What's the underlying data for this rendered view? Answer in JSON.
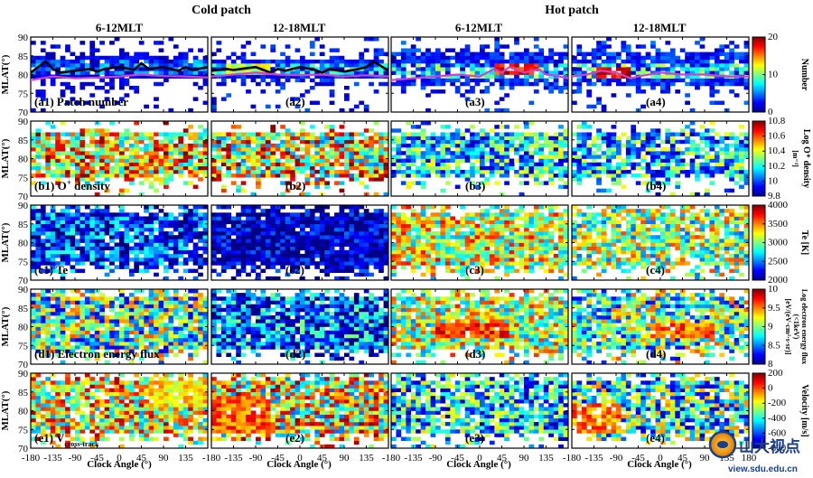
{
  "headers": {
    "cold": "Cold patch",
    "hot": "Hot patch"
  },
  "column_titles": [
    "6-12MLT",
    "12-18MLT",
    "6-12MLT",
    "12-18MLT"
  ],
  "y_axis_label": "MLAT(°)",
  "x_axis_label": "Clock Angle (°)",
  "y_ticks": [
    "70",
    "75",
    "80",
    "85",
    "90"
  ],
  "x_ticks": [
    "-180",
    "-135",
    "-90",
    "-45",
    "0",
    "45",
    "90",
    "135"
  ],
  "x_ticks_last": [
    "-180",
    "-135",
    "-90",
    "-45",
    "0",
    "45",
    "90",
    "135",
    "180"
  ],
  "panel_labels": [
    [
      "(a1) Patch number",
      "(a2)",
      "(a3)",
      "(a4)"
    ],
    [
      "(b1) O",
      "(b2)",
      "(b3)",
      "(b4)"
    ],
    [
      "(c1) Te",
      "(c2)",
      "(c3)",
      "(c4)"
    ],
    [
      "(d1) Electron energy flux",
      "(d2)",
      "(d3)",
      "(d4)"
    ],
    [
      "(e1) V",
      "(e2)",
      "(e3)",
      "(e4)"
    ]
  ],
  "label_suffix": {
    "b1_sup": "+",
    "b1_rest": " density",
    "e1_sub": "cross-track"
  },
  "colorbars": [
    {
      "ticks": [
        "0",
        "10",
        "20"
      ],
      "label": "Number",
      "range": [
        0,
        20
      ]
    },
    {
      "ticks": [
        "9.8",
        "10",
        "10.2",
        "10.4",
        "10.6",
        "10.8"
      ],
      "label": "Log O⁺ density",
      "sub": "[m⁻³]",
      "range": [
        9.8,
        10.8
      ]
    },
    {
      "ticks": [
        "2000",
        "2500",
        "3000",
        "3500",
        "4000"
      ],
      "label": "Te [K]",
      "range": [
        2000,
        4000
      ]
    },
    {
      "ticks": [
        "8",
        "8.5",
        "9",
        "9.5",
        "10"
      ],
      "label": "Log electron energy flux",
      "sub": "(<1keV)",
      "sub2": "[eV/(eV·cm²·s·sr)]",
      "range": [
        8,
        10
      ]
    },
    {
      "ticks": [
        "-800",
        "-600",
        "-400",
        "-200",
        "0",
        "200"
      ],
      "label": "Velocity [m/s]",
      "range": [
        -800,
        200
      ]
    }
  ],
  "watermark": {
    "name": "山大视点",
    "url": "view.sdu.edu.cn"
  },
  "chart_data": {
    "type": "heatmap",
    "x_range": [
      -180,
      180
    ],
    "y_range": [
      70,
      90
    ],
    "rows": [
      "Patch number",
      "O+ density",
      "Te",
      "Electron energy flux",
      "V cross-track"
    ],
    "columns": [
      "Cold patch 6-12MLT",
      "Cold patch 12-18MLT",
      "Hot patch 6-12MLT",
      "Hot patch 12-18MLT"
    ],
    "row_typical_values": [
      [
        3,
        4,
        5,
        6
      ],
      [
        10.4,
        10.4,
        10.1,
        10.1
      ],
      [
        2300,
        2100,
        3200,
        3000
      ],
      [
        9.0,
        8.6,
        9.4,
        9.3
      ],
      [
        -400,
        -400,
        -200,
        -200
      ]
    ],
    "row_peak_values": [
      [
        12,
        16,
        20,
        20
      ],
      [
        10.6,
        10.6,
        10.3,
        10.3
      ],
      [
        2800,
        2500,
        3500,
        3400
      ],
      [
        9.6,
        9.4,
        9.9,
        9.9
      ],
      [
        -700,
        -800,
        -600,
        -700
      ]
    ],
    "line_series": [
      {
        "panel": "a1",
        "color": "#000000",
        "x": [
          -180,
          -150,
          -135,
          -120,
          -90,
          -60,
          -45,
          -30,
          0,
          30,
          45,
          60,
          90,
          120,
          135,
          150,
          180
        ],
        "y": [
          80.5,
          83.5,
          81.5,
          80.5,
          81,
          81.5,
          80.8,
          81.5,
          82,
          81.3,
          83,
          81.5,
          82,
          81,
          82,
          81.2,
          82
        ]
      },
      {
        "panel": "a1",
        "color": "#d040d0",
        "x": [
          -180,
          -135,
          -90,
          -45,
          0,
          45,
          90,
          135,
          180
        ],
        "y": [
          78.5,
          79.5,
          79,
          79.2,
          79.5,
          80,
          79.6,
          79.5,
          79.2
        ]
      },
      {
        "panel": "a2",
        "color": "#000000",
        "x": [
          -180,
          -150,
          -135,
          -120,
          -90,
          -60,
          -45,
          -30,
          0,
          30,
          45,
          60,
          90,
          120,
          135,
          150,
          180
        ],
        "y": [
          81,
          81.5,
          81.2,
          81.5,
          82,
          80.5,
          81.5,
          81,
          82,
          81.3,
          80.5,
          81.5,
          80.8,
          81.5,
          82,
          83.5,
          81
        ]
      },
      {
        "panel": "a2",
        "color": "#d040d0",
        "x": [
          -180,
          -135,
          -90,
          -45,
          0,
          45,
          90,
          135,
          180
        ],
        "y": [
          79.5,
          80,
          80.5,
          80,
          79.8,
          80,
          79.5,
          79.8,
          79.5
        ]
      },
      {
        "panel": "a3",
        "color": "#d040d0",
        "x": [
          -180,
          -135,
          -90,
          -45,
          0,
          30,
          45,
          60,
          90,
          120,
          135,
          150,
          180
        ],
        "y": [
          78.5,
          79,
          79.5,
          80,
          79.5,
          81.5,
          80.5,
          82,
          80.5,
          81.5,
          80,
          79.8,
          79
        ]
      },
      {
        "panel": "a4",
        "color": "#d040d0",
        "x": [
          -180,
          -150,
          -135,
          -120,
          -90,
          -60,
          -45,
          0,
          45,
          90,
          135,
          180
        ],
        "y": [
          79.5,
          80,
          80.5,
          81,
          80.5,
          79,
          79.5,
          80.5,
          80,
          80,
          79.5,
          79.5
        ]
      }
    ]
  }
}
